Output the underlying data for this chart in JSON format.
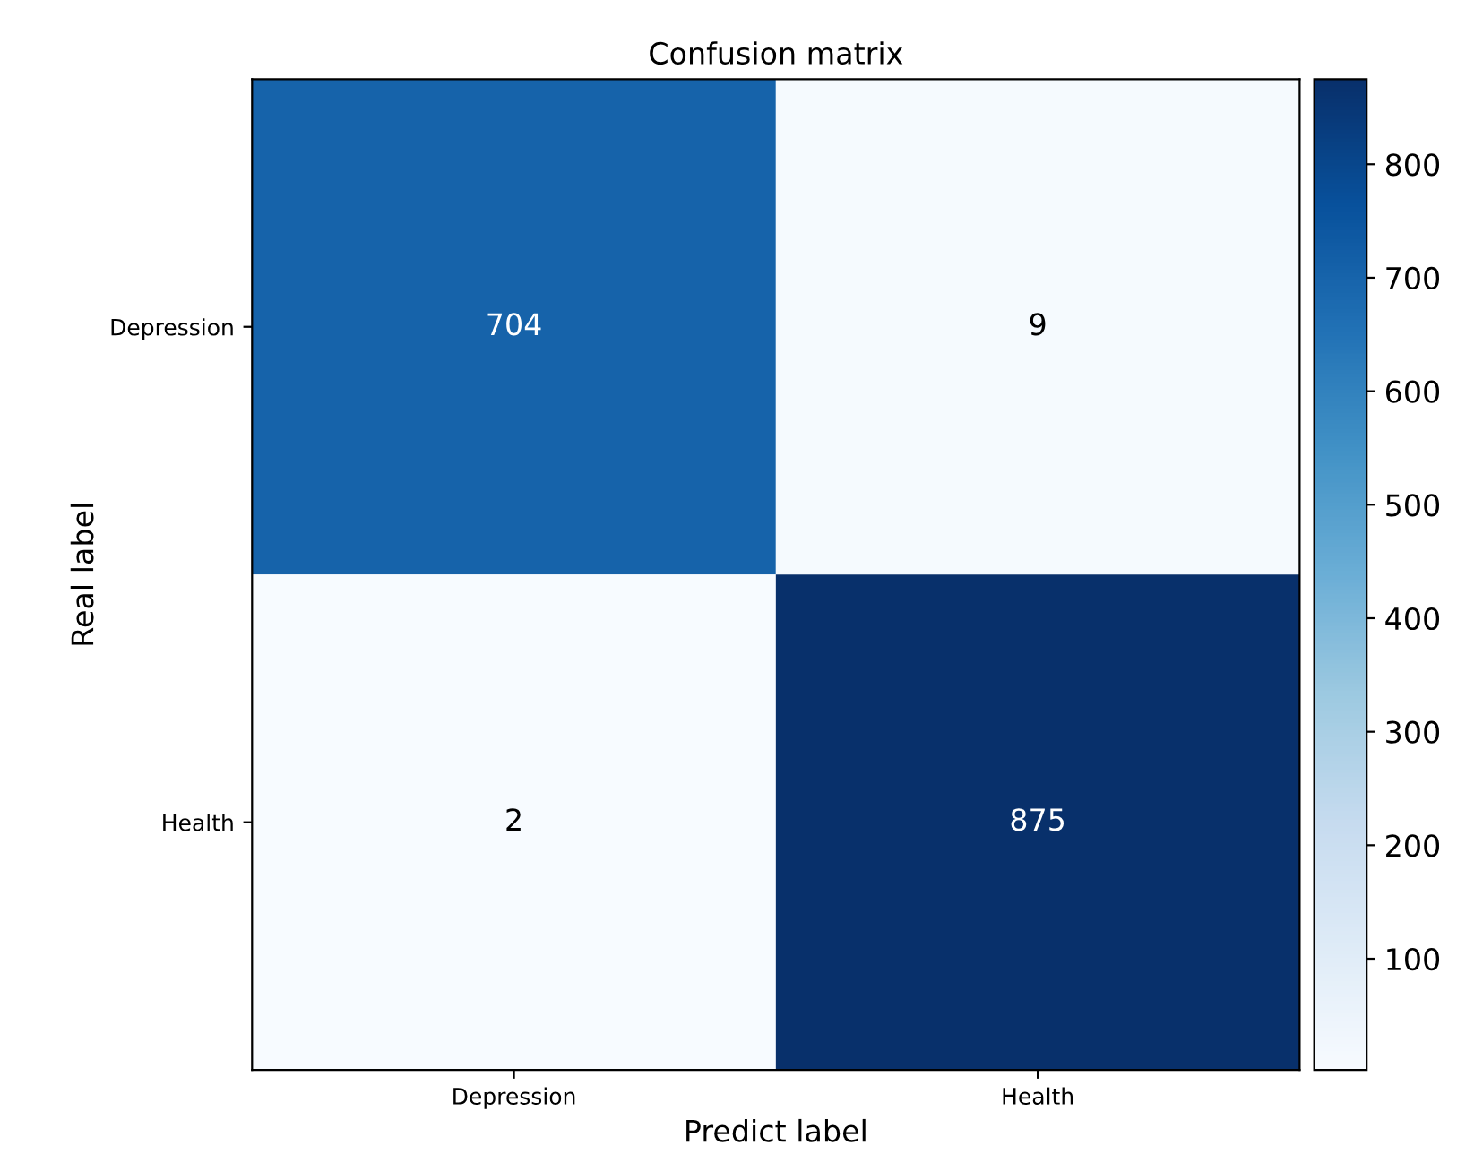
{
  "chart_data": {
    "type": "heatmap",
    "title": "Confusion matrix",
    "xlabel": "Predict label",
    "ylabel": "Real label",
    "categories": [
      "Depression",
      "Health"
    ],
    "y_categories": [
      "Depression",
      "Health"
    ],
    "cells": [
      [
        704,
        9
      ],
      [
        2,
        875
      ]
    ],
    "clim": [
      2,
      875
    ],
    "cticks": [
      100,
      200,
      300,
      400,
      500,
      600,
      700,
      800
    ],
    "data_labels": true
  }
}
